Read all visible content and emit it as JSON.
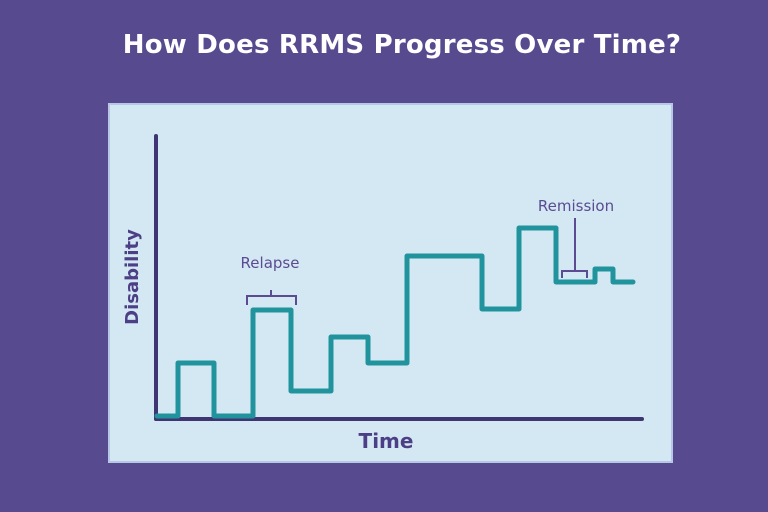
{
  "title": "How Does RRMS Progress Over Time?",
  "chart_data": {
    "type": "line",
    "xlabel": "Time",
    "ylabel": "Disability",
    "annotations": [
      "Relapse",
      "Remission"
    ]
  },
  "colors": {
    "background": "#574a8f",
    "panel": "#d4e8f3",
    "line": "#21939d",
    "axis": "#3f3572",
    "text": "#4c3f86"
  }
}
